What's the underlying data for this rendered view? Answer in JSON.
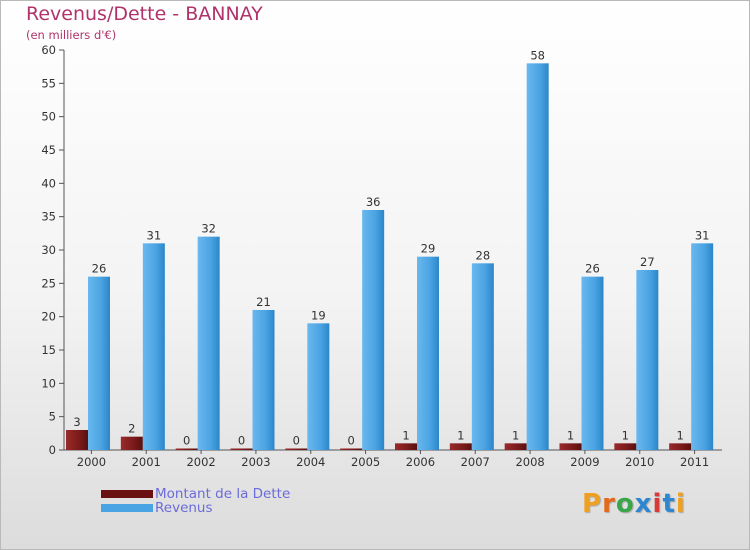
{
  "title": "Revenus/Dette - BANNAY",
  "subtitle": "(en milliers d'€)",
  "colors": {
    "debt": "#7a1a1a",
    "revenue": "#4aa3e2",
    "title": "#b0336b",
    "legend_text": "#6b6bdc"
  },
  "legend": [
    {
      "label": "Montant de la Dette",
      "color": "#7a1a1a"
    },
    {
      "label": "Revenus",
      "color": "#4aa3e2"
    }
  ],
  "logo": {
    "text": "Proxiti"
  },
  "chart_data": {
    "type": "bar",
    "title": "Revenus/Dette - BANNAY",
    "subtitle": "(en milliers d'€)",
    "categories": [
      "2000",
      "2001",
      "2002",
      "2003",
      "2004",
      "2005",
      "2006",
      "2007",
      "2008",
      "2009",
      "2010",
      "2011"
    ],
    "series": [
      {
        "name": "Montant de la Dette",
        "color": "#7a1a1a",
        "values": [
          3,
          2,
          0,
          0,
          0,
          0,
          1,
          1,
          1,
          1,
          1,
          1
        ]
      },
      {
        "name": "Revenus",
        "color": "#4aa3e2",
        "values": [
          26,
          31,
          32,
          21,
          19,
          36,
          29,
          28,
          58,
          26,
          27,
          31
        ]
      }
    ],
    "ylim": [
      0,
      60
    ],
    "yticks": [
      0,
      5,
      10,
      15,
      20,
      25,
      30,
      35,
      40,
      45,
      50,
      55,
      60
    ],
    "grid": false,
    "legend_position": "bottom-left"
  }
}
